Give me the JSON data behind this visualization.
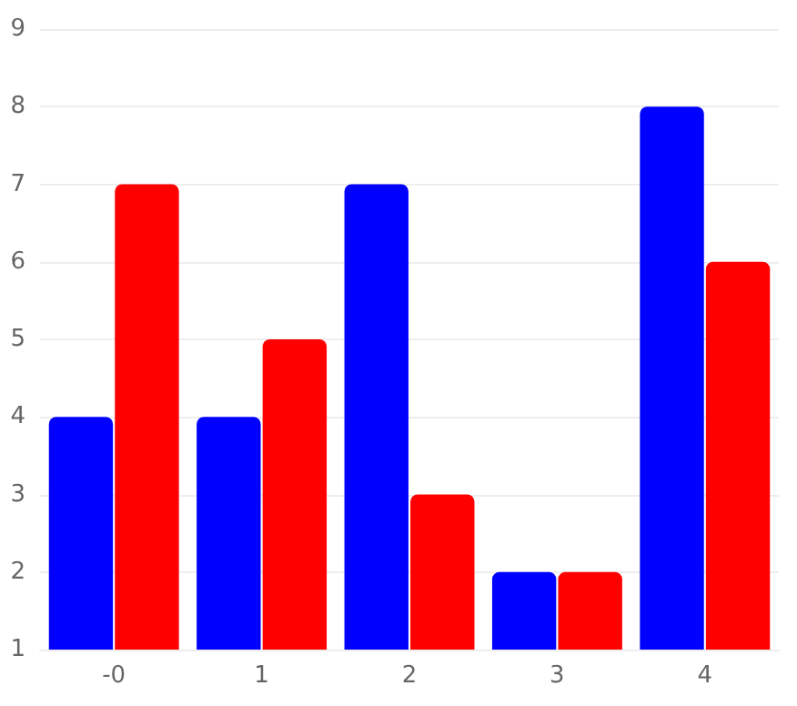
{
  "chart_data": {
    "type": "bar",
    "categories": [
      "-0",
      "1",
      "2",
      "3",
      "4"
    ],
    "series": [
      {
        "color": "#0000ff",
        "values": [
          4,
          4,
          7,
          2,
          8
        ]
      },
      {
        "color": "#ff0000",
        "values": [
          7,
          5,
          3,
          2,
          6
        ]
      }
    ],
    "ylim": [
      1,
      9
    ],
    "yticks": [
      1,
      2,
      3,
      4,
      5,
      6,
      7,
      8,
      9
    ],
    "grid": "y"
  }
}
